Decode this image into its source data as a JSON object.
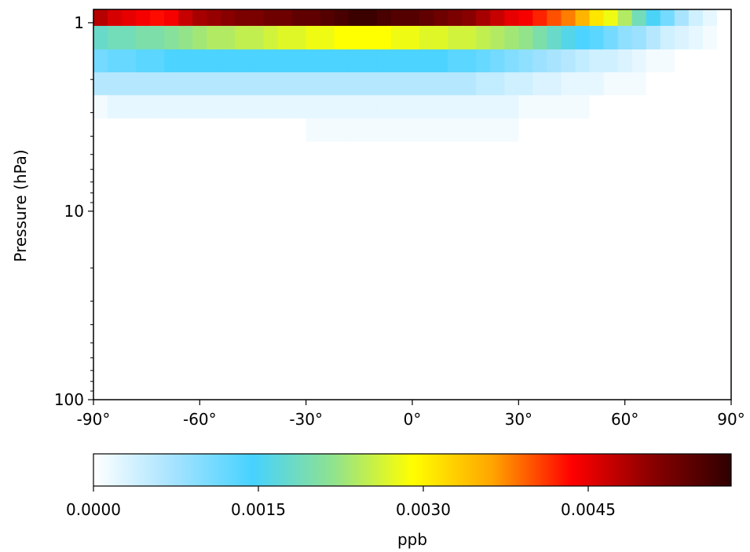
{
  "chart_data": {
    "type": "heatmap",
    "title": "",
    "xlabel": "",
    "ylabel": "Pressure (hPa)",
    "x_ticks": [
      "-90°",
      "-60°",
      "-30°",
      "0°",
      "30°",
      "60°",
      "90°"
    ],
    "x_range": [
      -90,
      90
    ],
    "y_scale": "log",
    "y_range": [
      100,
      0.85
    ],
    "y_ticks": [
      "1",
      "10",
      "100"
    ],
    "colorbar": {
      "label": "ppb",
      "range": [
        0,
        0.0058
      ],
      "ticks": [
        "0.0000",
        "0.0015",
        "0.0030",
        "0.0045"
      ],
      "colormap": [
        "#ffffff",
        "#a6e3ff",
        "#46d2ff",
        "#8fe28f",
        "#ffff00",
        "#ffa500",
        "#ff0000",
        "#8b0000",
        "#2e0000"
      ]
    },
    "latitudes": [
      -88,
      -84,
      -80,
      -76,
      -72,
      -68,
      -64,
      -60,
      -56,
      -52,
      -48,
      -44,
      -40,
      -36,
      -32,
      -28,
      -24,
      -20,
      -16,
      -12,
      -8,
      -4,
      0,
      4,
      8,
      12,
      16,
      20,
      24,
      28,
      32,
      36,
      40,
      44,
      48,
      52,
      56,
      60,
      64,
      68,
      72,
      76,
      80,
      84,
      88
    ],
    "pressure_levels": [
      0.9,
      1.2,
      1.6,
      2.1,
      2.8,
      3.7
    ],
    "values": [
      [
        0.0048,
        0.0046,
        0.0045,
        0.0044,
        0.0043,
        0.0044,
        0.0047,
        0.0049,
        0.005,
        0.0051,
        0.0052,
        0.0052,
        0.0053,
        0.0053,
        0.0054,
        0.0054,
        0.0055,
        0.0056,
        0.0057,
        0.0057,
        0.0056,
        0.0055,
        0.0055,
        0.0054,
        0.0053,
        0.0052,
        0.0051,
        0.0049,
        0.0047,
        0.0045,
        0.0044,
        0.0042,
        0.004,
        0.0038,
        0.0035,
        0.0031,
        0.0028,
        0.0024,
        0.0019,
        0.0015,
        0.0011,
        0.0007,
        0.0004,
        0.0002,
        0.0
      ],
      [
        0.0018,
        0.0019,
        0.0019,
        0.002,
        0.002,
        0.0021,
        0.0022,
        0.0023,
        0.0024,
        0.0024,
        0.0025,
        0.0025,
        0.0026,
        0.0027,
        0.0027,
        0.0028,
        0.0028,
        0.0029,
        0.0029,
        0.0029,
        0.0029,
        0.0028,
        0.0028,
        0.0027,
        0.0027,
        0.0026,
        0.0026,
        0.0025,
        0.0024,
        0.0023,
        0.0022,
        0.002,
        0.0018,
        0.0016,
        0.0014,
        0.0013,
        0.0011,
        0.0009,
        0.0008,
        0.0006,
        0.0004,
        0.0003,
        0.0002,
        0.0001,
        0.0
      ],
      [
        0.0011,
        0.0012,
        0.0012,
        0.0013,
        0.0013,
        0.0014,
        0.0014,
        0.0014,
        0.0014,
        0.0014,
        0.0014,
        0.0014,
        0.0014,
        0.0014,
        0.0014,
        0.0014,
        0.0014,
        0.0014,
        0.0014,
        0.0014,
        0.0014,
        0.0014,
        0.0014,
        0.0014,
        0.0014,
        0.0013,
        0.0013,
        0.0012,
        0.0011,
        0.001,
        0.0009,
        0.0008,
        0.0007,
        0.0006,
        0.0005,
        0.0004,
        0.0004,
        0.0003,
        0.0002,
        0.0001,
        0.0001,
        0.0,
        0.0,
        0.0,
        0.0
      ],
      [
        0.0006,
        0.0006,
        0.0006,
        0.0006,
        0.0006,
        0.0006,
        0.0006,
        0.0006,
        0.0006,
        0.0006,
        0.0006,
        0.0006,
        0.0006,
        0.0006,
        0.0006,
        0.0006,
        0.0006,
        0.0006,
        0.0006,
        0.0006,
        0.0006,
        0.0006,
        0.0006,
        0.0006,
        0.0006,
        0.0006,
        0.0006,
        0.0005,
        0.0005,
        0.0004,
        0.0004,
        0.0003,
        0.0003,
        0.0002,
        0.0002,
        0.0002,
        0.0001,
        0.0001,
        0.0001,
        0.0,
        0.0,
        0.0,
        0.0,
        0.0,
        0.0
      ],
      [
        0.0001,
        0.0002,
        0.0002,
        0.0002,
        0.0002,
        0.0002,
        0.0002,
        0.0002,
        0.0002,
        0.0002,
        0.0002,
        0.0002,
        0.0002,
        0.0002,
        0.0002,
        0.0002,
        0.0002,
        0.0002,
        0.0002,
        0.0002,
        0.0002,
        0.0002,
        0.0002,
        0.0002,
        0.0002,
        0.0002,
        0.0002,
        0.0002,
        0.0002,
        0.0002,
        0.0001,
        0.0001,
        0.0001,
        0.0001,
        0.0001,
        0.0,
        0.0,
        0.0,
        0.0,
        0.0,
        0.0,
        0.0,
        0.0,
        0.0,
        0.0
      ],
      [
        0.0,
        0.0,
        0.0,
        0.0,
        0.0,
        0.0,
        0.0,
        0.0,
        0.0,
        0.0,
        0.0,
        0.0,
        0.0,
        0.0,
        0.0,
        0.0001,
        0.0001,
        0.0001,
        0.0001,
        0.0001,
        0.0001,
        0.0001,
        0.0001,
        0.0001,
        0.0001,
        0.0001,
        0.0001,
        0.0001,
        0.0001,
        0.0001,
        0.0,
        0.0,
        0.0,
        0.0,
        0.0,
        0.0,
        0.0,
        0.0,
        0.0,
        0.0,
        0.0,
        0.0,
        0.0,
        0.0,
        0.0
      ]
    ]
  }
}
